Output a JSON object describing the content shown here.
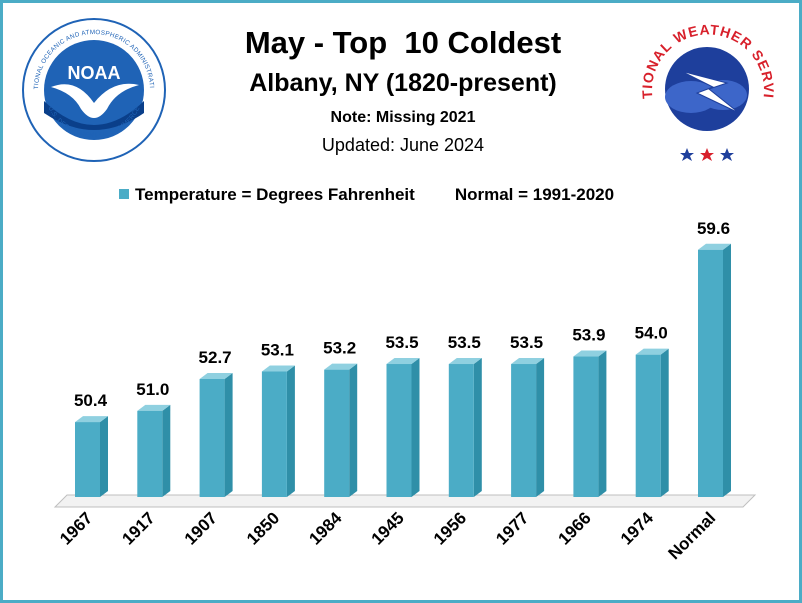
{
  "header": {
    "title": "May - Top  10 Coldest",
    "subtitle": "Albany, NY (1820-present)",
    "note": "Note: Missing 2021",
    "updated": "Updated: June 2024"
  },
  "legend": {
    "series_label": "Temperature = Degrees Fahrenheit",
    "normal_label": "Normal = 1991-2020"
  },
  "logos": {
    "noaa": {
      "center_text": "NOAA",
      "ring_text": "NATIONAL OCEANIC AND ATMOSPHERIC ADMINISTRATION",
      "bottom_text": "U.S. DEPARTMENT OF COMMERCE"
    },
    "nws": {
      "ring_text": "NATIONAL WEATHER SERVICE"
    }
  },
  "colors": {
    "bar": "#4bacc6",
    "bar_side": "#2f8fa8",
    "bar_top": "#8fd0e0",
    "frame": "#4bacc6",
    "noaa_blue": "#1f63b6",
    "nws_red": "#d8202b"
  },
  "chart_data": {
    "type": "bar",
    "categories": [
      "1967",
      "1917",
      "1907",
      "1850",
      "1984",
      "1945",
      "1956",
      "1977",
      "1966",
      "1974",
      "Normal"
    ],
    "values": [
      50.4,
      51.0,
      52.7,
      53.1,
      53.2,
      53.5,
      53.5,
      53.5,
      53.9,
      54.0,
      59.6
    ],
    "value_labels": [
      "50.4",
      "51.0",
      "52.7",
      "53.1",
      "53.2",
      "53.5",
      "53.5",
      "53.5",
      "53.9",
      "54.0",
      "59.6"
    ],
    "title": "May - Top  10 Coldest",
    "xlabel": "",
    "ylabel": "",
    "grid": false,
    "legend_position": "top"
  }
}
